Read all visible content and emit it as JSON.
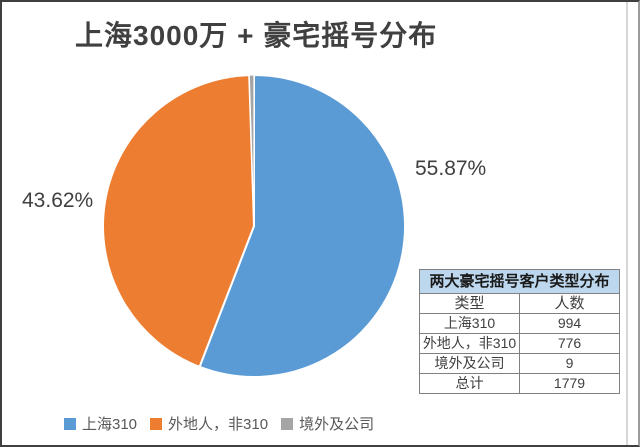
{
  "title": "上海3000万 + 豪宅摇号分布",
  "chart_data": {
    "type": "pie",
    "title": "上海3000万 + 豪宅摇号分布",
    "categories": [
      "上海310",
      "外地人，非310",
      "境外及公司"
    ],
    "values": [
      994,
      776,
      9
    ],
    "percent_labels": [
      "55.87%",
      "43.62%",
      ""
    ],
    "colors": [
      "#5B9BD5",
      "#ED7D31",
      "#A5A5A5"
    ],
    "start_angle_deg": 0,
    "direction": "clockwise",
    "legend_position": "bottom",
    "slice_separator_color": "#FFFFFF"
  },
  "legend": {
    "items": [
      {
        "label": "上海310"
      },
      {
        "label": "外地人，非310"
      },
      {
        "label": "境外及公司"
      }
    ]
  },
  "table": {
    "title": "两大豪宅摇号客户类型分布",
    "header": [
      "类型",
      "人数"
    ],
    "rows": [
      [
        "上海310",
        "994"
      ],
      [
        "外地人，非310",
        "776"
      ],
      [
        "境外及公司",
        "9"
      ],
      [
        "总计",
        "1779"
      ]
    ]
  }
}
